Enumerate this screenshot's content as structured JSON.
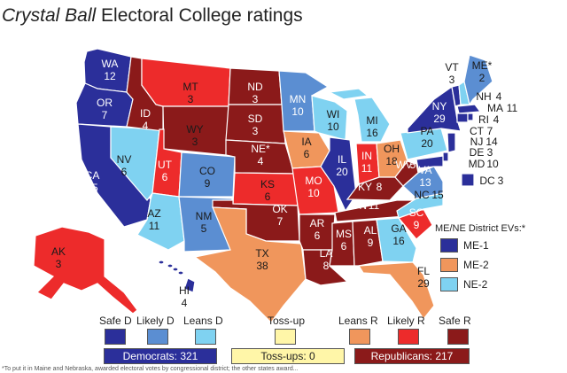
{
  "title": {
    "italic": "Crystal Ball",
    "rest": " Electoral College ratings"
  },
  "colors": {
    "safe_d": "#2b2f9a",
    "likely_d": "#5b8ed2",
    "leans_d": "#7fd2f1",
    "tossup": "#fff6a8",
    "leans_r": "#f0965c",
    "likely_r": "#ed2b2b",
    "safe_r": "#8b1a1a"
  },
  "states": [
    {
      "name": "WA",
      "ev": "12",
      "rating": "safe_d"
    },
    {
      "name": "OR",
      "ev": "7",
      "rating": "safe_d"
    },
    {
      "name": "CA",
      "ev": "55",
      "rating": "safe_d"
    },
    {
      "name": "NV",
      "ev": "6",
      "rating": "leans_d"
    },
    {
      "name": "ID",
      "ev": "4",
      "rating": "safe_r"
    },
    {
      "name": "MT",
      "ev": "3",
      "rating": "likely_r"
    },
    {
      "name": "WY",
      "ev": "3",
      "rating": "safe_r"
    },
    {
      "name": "UT",
      "ev": "6",
      "rating": "likely_r"
    },
    {
      "name": "AZ",
      "ev": "11",
      "rating": "leans_d"
    },
    {
      "name": "CO",
      "ev": "9",
      "rating": "likely_d"
    },
    {
      "name": "NM",
      "ev": "5",
      "rating": "likely_d"
    },
    {
      "name": "ND",
      "ev": "3",
      "rating": "safe_r"
    },
    {
      "name": "SD",
      "ev": "3",
      "rating": "safe_r"
    },
    {
      "name": "NE*",
      "ev": "4",
      "rating": "safe_r"
    },
    {
      "name": "KS",
      "ev": "6",
      "rating": "likely_r"
    },
    {
      "name": "OK",
      "ev": "7",
      "rating": "safe_r"
    },
    {
      "name": "TX",
      "ev": "38",
      "rating": "leans_r"
    },
    {
      "name": "MN",
      "ev": "10",
      "rating": "likely_d"
    },
    {
      "name": "IA",
      "ev": "6",
      "rating": "leans_r"
    },
    {
      "name": "MO",
      "ev": "10",
      "rating": "likely_r"
    },
    {
      "name": "AR",
      "ev": "6",
      "rating": "safe_r"
    },
    {
      "name": "LA",
      "ev": "8",
      "rating": "safe_r"
    },
    {
      "name": "WI",
      "ev": "10",
      "rating": "leans_d"
    },
    {
      "name": "IL",
      "ev": "20",
      "rating": "safe_d"
    },
    {
      "name": "MI",
      "ev": "16",
      "rating": "leans_d"
    },
    {
      "name": "IN",
      "ev": "11",
      "rating": "likely_r"
    },
    {
      "name": "OH",
      "ev": "18",
      "rating": "leans_r"
    },
    {
      "name": "KY",
      "ev": "8",
      "rating": "safe_r"
    },
    {
      "name": "TN",
      "ev": "11",
      "rating": "safe_r"
    },
    {
      "name": "MS",
      "ev": "6",
      "rating": "safe_r"
    },
    {
      "name": "AL",
      "ev": "9",
      "rating": "safe_r"
    },
    {
      "name": "GA",
      "ev": "16",
      "rating": "leans_d"
    },
    {
      "name": "FL",
      "ev": "29",
      "rating": "leans_r"
    },
    {
      "name": "SC",
      "ev": "9",
      "rating": "likely_r"
    },
    {
      "name": "NC",
      "ev": "15",
      "rating": "leans_d"
    },
    {
      "name": "VA",
      "ev": "13",
      "rating": "likely_d"
    },
    {
      "name": "WV",
      "ev": "5",
      "rating": "safe_r"
    },
    {
      "name": "PA",
      "ev": "20",
      "rating": "leans_d"
    },
    {
      "name": "NY",
      "ev": "29",
      "rating": "safe_d"
    },
    {
      "name": "VT",
      "ev": "3",
      "rating": "safe_d"
    },
    {
      "name": "ME*",
      "ev": "2",
      "rating": "likely_d"
    },
    {
      "name": "NH",
      "ev": "4",
      "rating": "leans_d"
    },
    {
      "name": "MA",
      "ev": "11",
      "rating": "safe_d"
    },
    {
      "name": "RI",
      "ev": "4",
      "rating": "safe_d"
    },
    {
      "name": "CT",
      "ev": "7",
      "rating": "safe_d"
    },
    {
      "name": "NJ",
      "ev": "14",
      "rating": "safe_d"
    },
    {
      "name": "DE",
      "ev": "3",
      "rating": "safe_d"
    },
    {
      "name": "MD",
      "ev": "10",
      "rating": "safe_d"
    },
    {
      "name": "DC",
      "ev": "3",
      "rating": "safe_d"
    },
    {
      "name": "AK",
      "ev": "3",
      "rating": "likely_r"
    },
    {
      "name": "HI",
      "ev": "4",
      "rating": "safe_d"
    }
  ],
  "district_legend": {
    "title": "ME/NE District EVs:*",
    "items": [
      {
        "label": "ME-1",
        "rating": "safe_d"
      },
      {
        "label": "ME-2",
        "rating": "leans_r"
      },
      {
        "label": "NE-2",
        "rating": "leans_d"
      }
    ]
  },
  "legend": [
    {
      "label": "Safe D",
      "rating": "safe_d"
    },
    {
      "label": "Likely D",
      "rating": "likely_d"
    },
    {
      "label": "Leans D",
      "rating": "leans_d"
    },
    {
      "label": "Toss-up",
      "rating": "tossup"
    },
    {
      "label": "Leans R",
      "rating": "leans_r"
    },
    {
      "label": "Likely R",
      "rating": "likely_r"
    },
    {
      "label": "Safe R",
      "rating": "safe_r"
    }
  ],
  "totals": {
    "democrats": "Democrats: 321",
    "tossups": "Toss-ups: 0",
    "republicans": "Republicans: 217"
  },
  "footnote": "*To put it in Maine and Nebraska, awarded electoral votes by congressional district; the other states award..."
}
